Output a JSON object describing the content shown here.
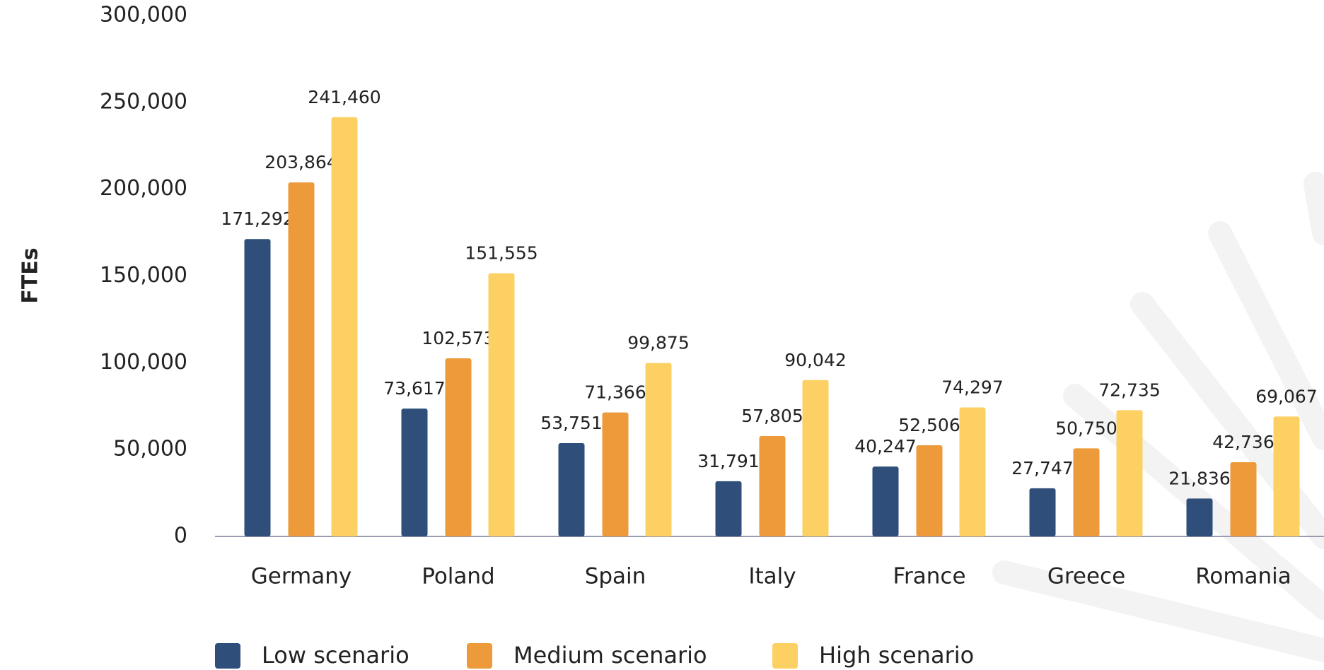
{
  "chart_data": {
    "type": "bar",
    "y_label": "FTEs",
    "categories": [
      "Germany",
      "Poland",
      "Spain",
      "Italy",
      "France",
      "Greece",
      "Romania"
    ],
    "series": [
      {
        "name": "Low scenario",
        "color": "#2f4f7a",
        "values": [
          171292,
          73617,
          53751,
          31791,
          40247,
          27747,
          21836
        ],
        "value_labels": [
          "171,292",
          "73,617",
          "53,751",
          "31,791",
          "40,247",
          "27,747",
          "21,836"
        ]
      },
      {
        "name": "Medium scenario",
        "color": "#ec9a3a",
        "values": [
          203864,
          102573,
          71366,
          57805,
          52506,
          50750,
          42736
        ],
        "value_labels": [
          "203,864",
          "102,573",
          "71,366",
          "57,805",
          "52,506",
          "50,750",
          "42,736"
        ]
      },
      {
        "name": "High scenario",
        "color": "#fcd062",
        "values": [
          241460,
          151555,
          99875,
          90042,
          74297,
          72735,
          69067
        ],
        "value_labels": [
          "241,460",
          "151,555",
          "99,875",
          "90,042",
          "74,297",
          "72,735",
          "69,067"
        ]
      }
    ],
    "ylim": [
      0,
      300000
    ],
    "yticks": [
      0,
      {
        "value": 50000,
        "label": "50,000"
      },
      {
        "value": 100000,
        "label": "100,000"
      },
      {
        "value": 150000,
        "label": "150,000"
      },
      {
        "value": 200000,
        "label": "200,000"
      },
      {
        "value": 250000,
        "label": "250,000"
      },
      {
        "value": 300000,
        "label": "300,000"
      }
    ],
    "grid": false,
    "legend": "bottom"
  }
}
